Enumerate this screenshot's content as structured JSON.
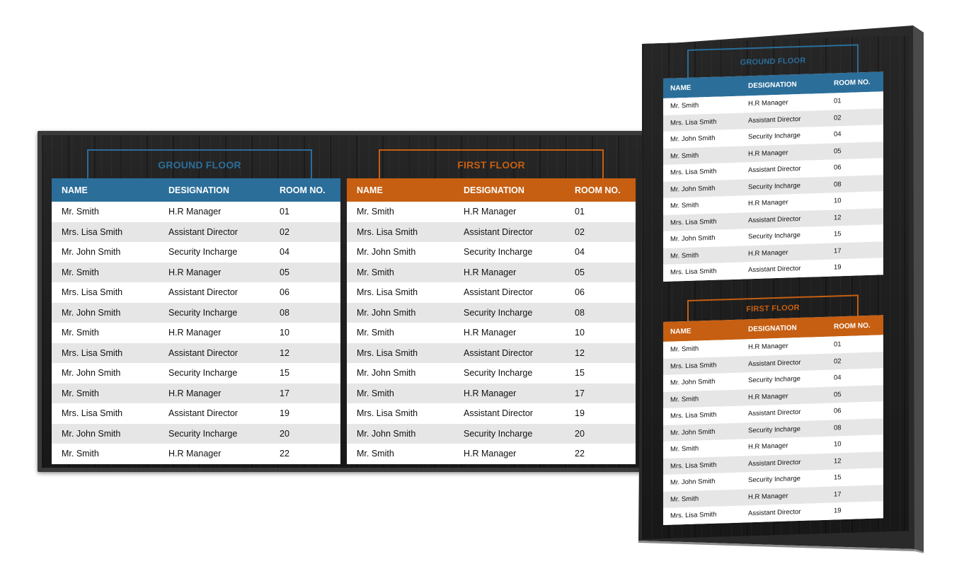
{
  "colors": {
    "blue": "#2b6e9a",
    "orange": "#c65f12",
    "frame": "#3a3a3a"
  },
  "columns": {
    "name": "NAME",
    "designation": "DESIGNATION",
    "room": "ROOM NO."
  },
  "ground_floor": {
    "title": "GROUND FLOOR",
    "rows": [
      {
        "name": "Mr. Smith",
        "designation": "H.R Manager",
        "room": "01"
      },
      {
        "name": "Mrs. Lisa Smith",
        "designation": "Assistant Director",
        "room": "02"
      },
      {
        "name": "Mr. John Smith",
        "designation": "Security Incharge",
        "room": "04"
      },
      {
        "name": "Mr. Smith",
        "designation": "H.R Manager",
        "room": "05"
      },
      {
        "name": "Mrs. Lisa Smith",
        "designation": "Assistant Director",
        "room": "06"
      },
      {
        "name": "Mr. John Smith",
        "designation": "Security Incharge",
        "room": "08"
      },
      {
        "name": "Mr. Smith",
        "designation": "H.R Manager",
        "room": "10"
      },
      {
        "name": "Mrs. Lisa Smith",
        "designation": "Assistant Director",
        "room": "12"
      },
      {
        "name": "Mr. John Smith",
        "designation": "Security Incharge",
        "room": "15"
      },
      {
        "name": "Mr. Smith",
        "designation": "H.R Manager",
        "room": "17"
      },
      {
        "name": "Mrs. Lisa Smith",
        "designation": "Assistant Director",
        "room": "19"
      },
      {
        "name": "Mr. John Smith",
        "designation": "Security Incharge",
        "room": "20"
      },
      {
        "name": "Mr. Smith",
        "designation": "H.R Manager",
        "room": "22"
      }
    ]
  },
  "first_floor": {
    "title": "FIRST FLOOR",
    "rows": [
      {
        "name": "Mr. Smith",
        "designation": "H.R Manager",
        "room": "01"
      },
      {
        "name": "Mrs. Lisa Smith",
        "designation": "Assistant Director",
        "room": "02"
      },
      {
        "name": "Mr. John Smith",
        "designation": "Security Incharge",
        "room": "04"
      },
      {
        "name": "Mr. Smith",
        "designation": "H.R Manager",
        "room": "05"
      },
      {
        "name": "Mrs. Lisa Smith",
        "designation": "Assistant Director",
        "room": "06"
      },
      {
        "name": "Mr. John Smith",
        "designation": "Security Incharge",
        "room": "08"
      },
      {
        "name": "Mr. Smith",
        "designation": "H.R Manager",
        "room": "10"
      },
      {
        "name": "Mrs. Lisa Smith",
        "designation": "Assistant Director",
        "room": "12"
      },
      {
        "name": "Mr. John Smith",
        "designation": "Security Incharge",
        "room": "15"
      },
      {
        "name": "Mr. Smith",
        "designation": "H.R Manager",
        "room": "17"
      },
      {
        "name": "Mrs. Lisa Smith",
        "designation": "Assistant Director",
        "room": "19"
      },
      {
        "name": "Mr. John Smith",
        "designation": "Security Incharge",
        "room": "20"
      },
      {
        "name": "Mr. Smith",
        "designation": "H.R Manager",
        "room": "22"
      }
    ]
  },
  "portrait_ground_floor": {
    "title": "GROUND FLOOR",
    "rows": [
      {
        "name": "Mr. Smith",
        "designation": "H.R Manager",
        "room": "01"
      },
      {
        "name": "Mrs. Lisa Smith",
        "designation": "Assistant Director",
        "room": "02"
      },
      {
        "name": "Mr. John Smith",
        "designation": "Security Incharge",
        "room": "04"
      },
      {
        "name": "Mr. Smith",
        "designation": "H.R Manager",
        "room": "05"
      },
      {
        "name": "Mrs. Lisa Smith",
        "designation": "Assistant Director",
        "room": "06"
      },
      {
        "name": "Mr. John Smith",
        "designation": "Security Incharge",
        "room": "08"
      },
      {
        "name": "Mr. Smith",
        "designation": "H.R Manager",
        "room": "10"
      },
      {
        "name": "Mrs. Lisa Smith",
        "designation": "Assistant Director",
        "room": "12"
      },
      {
        "name": "Mr. John Smith",
        "designation": "Security Incharge",
        "room": "15"
      },
      {
        "name": "Mr. Smith",
        "designation": "H.R Manager",
        "room": "17"
      },
      {
        "name": "Mrs. Lisa Smith",
        "designation": "Assistant Director",
        "room": "19"
      }
    ]
  },
  "portrait_first_floor": {
    "title": "FIRST FLOOR",
    "rows": [
      {
        "name": "Mr. Smith",
        "designation": "H.R Manager",
        "room": "01"
      },
      {
        "name": "Mrs. Lisa Smith",
        "designation": "Assistant Director",
        "room": "02"
      },
      {
        "name": "Mr. John Smith",
        "designation": "Security Incharge",
        "room": "04"
      },
      {
        "name": "Mr. Smith",
        "designation": "H.R Manager",
        "room": "05"
      },
      {
        "name": "Mrs. Lisa Smith",
        "designation": "Assistant Director",
        "room": "06"
      },
      {
        "name": "Mr. John Smith",
        "designation": "Security Incharge",
        "room": "08"
      },
      {
        "name": "Mr. Smith",
        "designation": "H.R Manager",
        "room": "10"
      },
      {
        "name": "Mrs. Lisa Smith",
        "designation": "Assistant Director",
        "room": "12"
      },
      {
        "name": "Mr. John Smith",
        "designation": "Security Incharge",
        "room": "15"
      },
      {
        "name": "Mr. Smith",
        "designation": "H.R Manager",
        "room": "17"
      },
      {
        "name": "Mrs. Lisa Smith",
        "designation": "Assistant Director",
        "room": "19"
      }
    ]
  }
}
